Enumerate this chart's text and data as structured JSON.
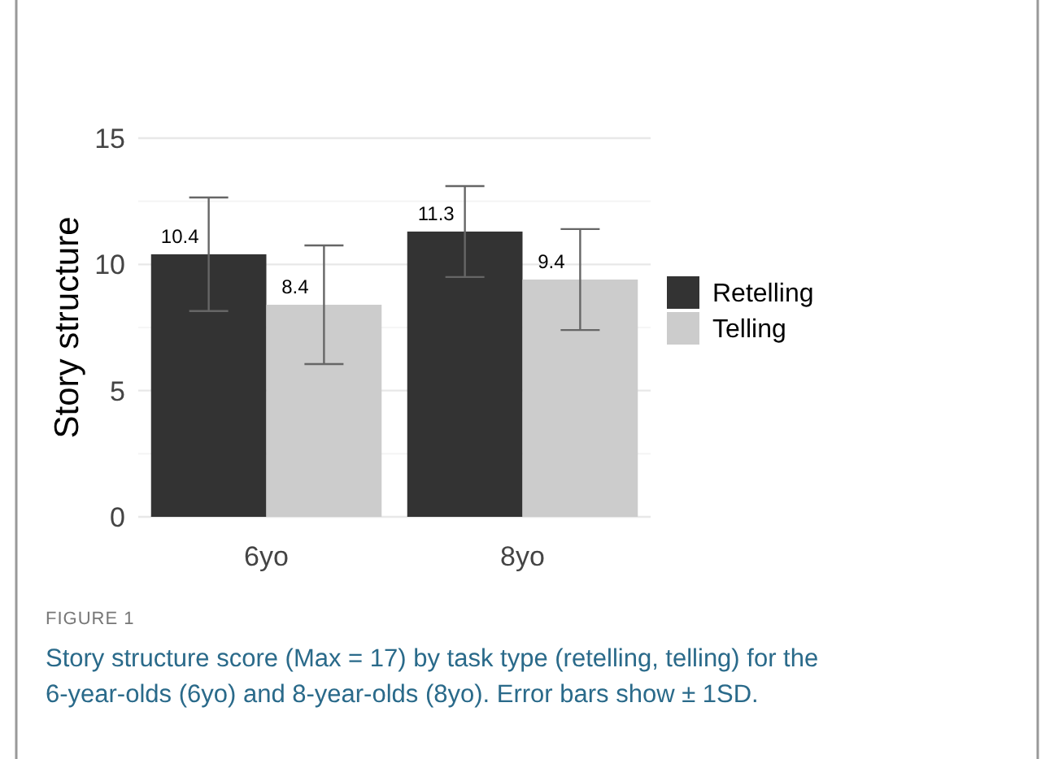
{
  "chart_data": {
    "type": "bar",
    "ylabel": "Story structure",
    "categories": [
      "6yo",
      "8yo"
    ],
    "series": [
      {
        "name": "Retelling",
        "color": "#333333",
        "values": [
          10.4,
          11.3
        ],
        "errors": [
          2.25,
          1.8
        ]
      },
      {
        "name": "Telling",
        "color": "#cccccc",
        "values": [
          8.4,
          9.4
        ],
        "errors": [
          2.35,
          2.0
        ]
      }
    ],
    "ylim": [
      0,
      15
    ],
    "yticks": [
      0,
      {
        "value": 2.5,
        "label": null
      },
      5,
      {
        "value": 7.5,
        "label": null
      },
      10,
      {
        "value": 12.5,
        "label": null
      },
      15
    ],
    "grid": "y",
    "legend": "right",
    "data_labels": true,
    "annotations": [
      "FIGURE 1",
      "Story structure score (Max = 17) by task type (retelling, telling) for the 6-year-olds (6yo) and 8-year-olds (8yo). Error bars show ± 1SD."
    ]
  }
}
